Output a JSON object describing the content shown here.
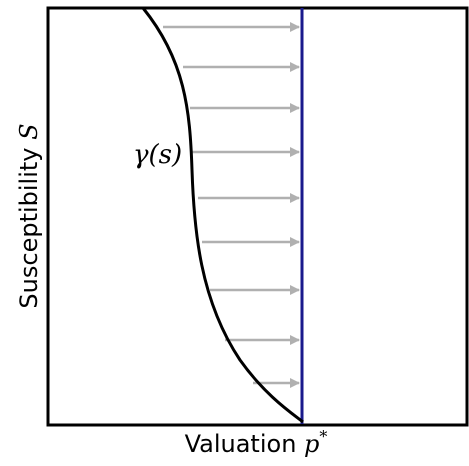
{
  "diagram": {
    "x_axis_label": "Valuation",
    "x_axis_symbol": "p",
    "x_axis_symbol_superscript": "*",
    "y_axis_label": "Susceptibility",
    "y_axis_symbol": "S",
    "curve_label": "γ(s)"
  }
}
